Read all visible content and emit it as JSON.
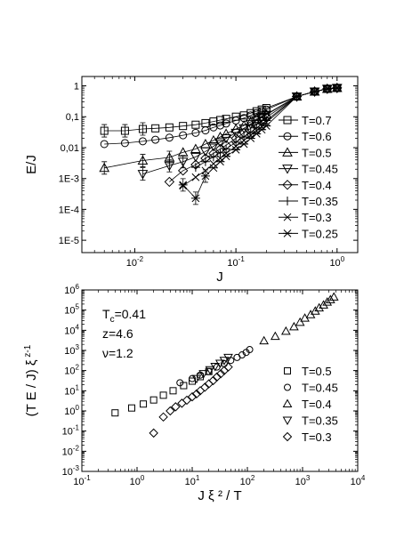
{
  "chart_data": [
    {
      "type": "line",
      "log_x": true,
      "log_y": true,
      "xlabel": "J",
      "ylabel": "E/J",
      "xlim": [
        0.003,
        1.6
      ],
      "ylim": [
        4e-06,
        2
      ],
      "x_ticks": [
        "10-2",
        "10-1",
        "100"
      ],
      "y_ticks": [
        "1",
        "0,1",
        "0,01",
        "1E-3",
        "1E-4",
        "1E-5"
      ],
      "legend_position": "right",
      "series": [
        {
          "name": "T=0.7",
          "marker": "square",
          "error_bars": true,
          "x": [
            0.005,
            0.008,
            0.012,
            0.016,
            0.022,
            0.03,
            0.04,
            0.05,
            0.06,
            0.07,
            0.08,
            0.1,
            0.12,
            0.14,
            0.16,
            0.18,
            0.2,
            0.4,
            0.6,
            0.8,
            1.0
          ],
          "y": [
            0.035,
            0.035,
            0.04,
            0.042,
            0.045,
            0.05,
            0.055,
            0.062,
            0.07,
            0.078,
            0.085,
            0.1,
            0.11,
            0.13,
            0.15,
            0.17,
            0.19,
            0.45,
            0.65,
            0.8,
            0.85
          ]
        },
        {
          "name": "T=0.6",
          "marker": "circle",
          "x": [
            0.005,
            0.008,
            0.012,
            0.016,
            0.022,
            0.03,
            0.04,
            0.05,
            0.06,
            0.07,
            0.08,
            0.1,
            0.12,
            0.14,
            0.16,
            0.18,
            0.2,
            0.4,
            0.6,
            0.8,
            1.0
          ],
          "y": [
            0.013,
            0.014,
            0.016,
            0.018,
            0.021,
            0.025,
            0.03,
            0.036,
            0.045,
            0.052,
            0.06,
            0.075,
            0.09,
            0.11,
            0.13,
            0.15,
            0.17,
            0.45,
            0.65,
            0.8,
            0.85
          ]
        },
        {
          "name": "T=0.5",
          "marker": "triangle-up",
          "error_bars": true,
          "x": [
            0.005,
            0.012,
            0.022,
            0.03,
            0.04,
            0.05,
            0.06,
            0.07,
            0.08,
            0.1,
            0.12,
            0.14,
            0.16,
            0.18,
            0.2,
            0.4,
            0.6,
            0.8,
            1.0
          ],
          "y": [
            0.0022,
            0.0038,
            0.0048,
            0.007,
            0.009,
            0.013,
            0.017,
            0.022,
            0.028,
            0.04,
            0.052,
            0.068,
            0.085,
            0.1,
            0.12,
            0.45,
            0.65,
            0.8,
            0.85
          ]
        },
        {
          "name": "T=0.45",
          "marker": "triangle-down",
          "error_bars": true,
          "x": [
            0.012,
            0.022,
            0.03,
            0.04,
            0.05,
            0.06,
            0.07,
            0.08,
            0.1,
            0.12,
            0.14,
            0.16,
            0.18,
            0.2,
            0.4,
            0.6,
            0.8,
            1.0
          ],
          "y": [
            0.0014,
            0.0026,
            0.0035,
            0.005,
            0.0075,
            0.011,
            0.015,
            0.02,
            0.03,
            0.042,
            0.058,
            0.075,
            0.095,
            0.115,
            0.45,
            0.65,
            0.8,
            0.85
          ]
        },
        {
          "name": "T=0.4",
          "marker": "diamond",
          "x": [
            0.022,
            0.03,
            0.04,
            0.05,
            0.06,
            0.07,
            0.08,
            0.1,
            0.12,
            0.14,
            0.16,
            0.18,
            0.2,
            0.4,
            0.6,
            0.8,
            1.0
          ],
          "y": [
            0.00078,
            0.0018,
            0.0028,
            0.0045,
            0.0065,
            0.009,
            0.012,
            0.02,
            0.03,
            0.042,
            0.058,
            0.075,
            0.095,
            0.45,
            0.65,
            0.8,
            0.85
          ]
        },
        {
          "name": "T=0.35",
          "marker": "plus",
          "x": [
            0.04,
            0.05,
            0.06,
            0.07,
            0.08,
            0.1,
            0.12,
            0.14,
            0.16,
            0.18,
            0.2,
            0.4,
            0.6,
            0.8,
            1.0
          ],
          "y": [
            0.0023,
            0.0035,
            0.005,
            0.0068,
            0.009,
            0.015,
            0.022,
            0.031,
            0.043,
            0.058,
            0.075,
            0.45,
            0.65,
            0.8,
            0.85
          ]
        },
        {
          "name": "T=0.3",
          "marker": "cross",
          "x": [
            0.03,
            0.04,
            0.05,
            0.06,
            0.07,
            0.08,
            0.1,
            0.12,
            0.14,
            0.16,
            0.18,
            0.2,
            0.4,
            0.6,
            0.8,
            1.0
          ],
          "y": [
            0.00058,
            0.0011,
            0.0018,
            0.003,
            0.0045,
            0.0065,
            0.011,
            0.017,
            0.025,
            0.035,
            0.048,
            0.065,
            0.45,
            0.65,
            0.8,
            0.85
          ]
        },
        {
          "name": "T=0.25",
          "marker": "asterisk",
          "error_bars": true,
          "x": [
            0.03,
            0.04,
            0.05,
            0.06,
            0.07,
            0.08,
            0.1,
            0.12,
            0.14,
            0.16,
            0.18,
            0.2,
            0.4,
            0.6,
            0.8,
            1.0
          ],
          "y": [
            0.00062,
            0.00023,
            0.0012,
            0.0022,
            0.0035,
            0.0052,
            0.0085,
            0.013,
            0.02,
            0.028,
            0.038,
            0.05,
            0.45,
            0.65,
            0.8,
            0.85
          ]
        }
      ]
    },
    {
      "type": "scatter",
      "log_x": true,
      "log_y": true,
      "xlabel": "J ξ ² / T",
      "ylabel": "(T E / J) ξ",
      "ylabel_superscript": "z-1",
      "xlim": [
        0.1,
        10000
      ],
      "ylim": [
        0.001,
        1000000
      ],
      "x_ticks": [
        "10-1",
        "100",
        "101",
        "102",
        "103",
        "104"
      ],
      "y_ticks": [
        "10-3",
        "10-2",
        "10-1",
        "100",
        "101",
        "102",
        "103",
        "104",
        "105",
        "106"
      ],
      "annotations": [
        {
          "base": "T",
          "sub": "c",
          "rest": "=0.41"
        },
        {
          "base": "z=4.6",
          "sub": "",
          "rest": ""
        },
        {
          "base": "ν=1.2",
          "sub": "",
          "rest": ""
        }
      ],
      "legend_position": "right",
      "series": [
        {
          "name": "T=0.5",
          "marker": "square",
          "x": [
            0.4,
            0.8,
            1.3,
            2.0,
            3.0,
            4.5,
            7.0,
            10.0,
            14.0,
            20.0
          ],
          "y": [
            0.8,
            1.4,
            2.2,
            3.5,
            6.0,
            10.0,
            18.0,
            30.0,
            50.0,
            90.0
          ]
        },
        {
          "name": "T=0.45",
          "marker": "circle",
          "x": [
            6.0,
            10.0,
            14.0,
            20.0,
            28.0,
            38.0,
            50.0,
            65.0,
            80.0,
            95.0,
            110.0
          ],
          "y": [
            25.0,
            40.0,
            60.0,
            90.0,
            150.0,
            220.0,
            320.0,
            450.0,
            600.0,
            800.0,
            1100.0
          ]
        },
        {
          "name": "T=0.4",
          "marker": "triangle-up",
          "x": [
            200,
            320,
            500,
            700,
            900,
            1100,
            1400,
            1700,
            2000,
            2400,
            2800,
            3200,
            3700
          ],
          "y": [
            3000,
            5000,
            9000,
            15000,
            25000,
            40000,
            60000,
            90000,
            130000,
            180000,
            250000,
            330000,
            450000
          ]
        },
        {
          "name": "T=0.35",
          "marker": "triangle-down",
          "x": [
            12,
            16,
            21,
            26,
            32,
            38,
            45
          ],
          "y": [
            40,
            70,
            110,
            160,
            230,
            320,
            450
          ]
        },
        {
          "name": "T=0.3",
          "marker": "diamond",
          "x": [
            2.0,
            3.0,
            4.0,
            5.0,
            6.5,
            8.0,
            10.0,
            12.0,
            14.0,
            17.0,
            20.0,
            24.0,
            28.0,
            33.0,
            38.0,
            45.0
          ],
          "y": [
            0.08,
            0.5,
            1.0,
            1.6,
            2.4,
            3.4,
            5.0,
            7.0,
            10.0,
            15.0,
            22.0,
            32.0,
            48.0,
            70.0,
            100.0,
            150.0
          ]
        }
      ]
    }
  ]
}
